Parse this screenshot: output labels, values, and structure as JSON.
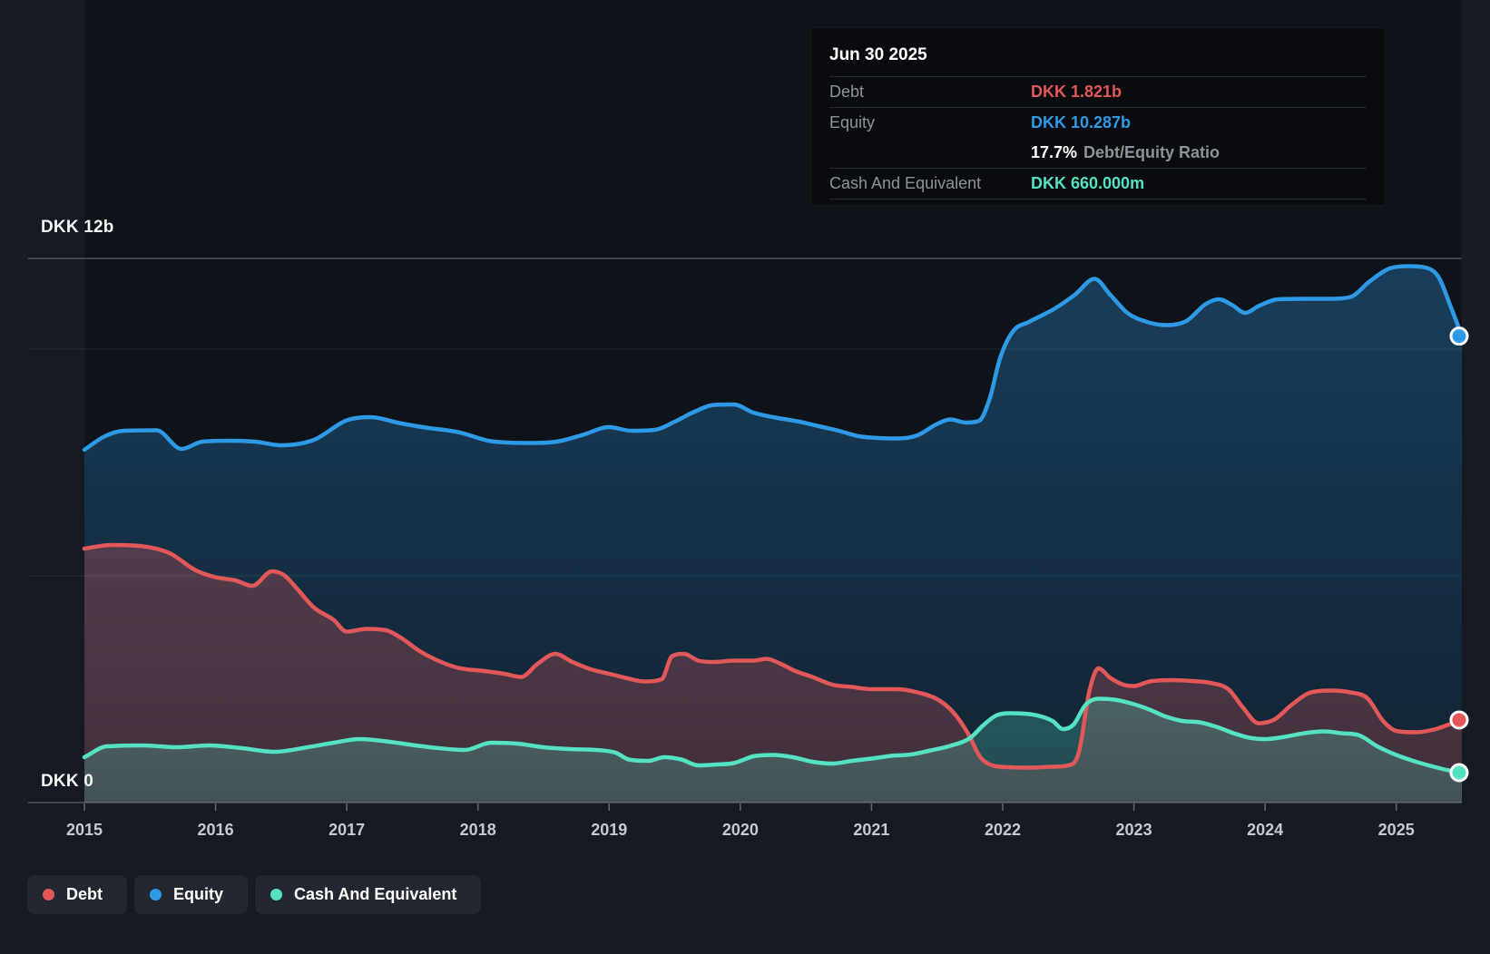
{
  "y_axis": {
    "top_label": "DKK 12b",
    "zero_label": "DKK 0"
  },
  "x_axis": {
    "years": [
      "2015",
      "2016",
      "2017",
      "2018",
      "2019",
      "2020",
      "2021",
      "2022",
      "2023",
      "2024",
      "2025"
    ]
  },
  "tooltip": {
    "date": "Jun 30 2025",
    "rows": [
      {
        "label": "Debt",
        "value": "DKK 1.821b"
      },
      {
        "label": "Equity",
        "value": "DKK 10.287b"
      },
      {
        "label": "",
        "ratio_pct": "17.7%",
        "ratio_text": "Debt/Equity Ratio"
      },
      {
        "label": "Cash And Equivalent",
        "value": "DKK 660.000m"
      }
    ]
  },
  "legend": {
    "items": [
      {
        "id": "debt",
        "label": "Debt"
      },
      {
        "id": "equity",
        "label": "Equity"
      },
      {
        "id": "cash",
        "label": "Cash And Equivalent"
      }
    ]
  },
  "colors": {
    "page_bg": "#161a22",
    "plot_bg": "#0e1219",
    "tooltip_bg": "#0a0b0e",
    "debt": "#e25858",
    "equity": "#2e9ae6",
    "cash": "#55e2c2",
    "label": "#c6cacf",
    "bright_label": "#f2f4f6",
    "muted": "#8d939a"
  },
  "chart_data": {
    "type": "area",
    "title": "Debt to Equity History",
    "unit": "DKK billions",
    "x_range": [
      2015.0,
      2025.5
    ],
    "y_range": [
      0,
      12
    ],
    "gridline_values": [
      12,
      10,
      5,
      0
    ],
    "grid": true,
    "legend_position": "bottom-left",
    "series": [
      {
        "name": "Equity",
        "color_key": "equity",
        "end_label": "DKK 10.287b",
        "points": [
          [
            2015.0,
            7.78
          ],
          [
            2015.15,
            8.07
          ],
          [
            2015.3,
            8.2
          ],
          [
            2015.55,
            8.21
          ],
          [
            2015.74,
            7.8
          ],
          [
            2015.9,
            7.96
          ],
          [
            2016.1,
            7.98
          ],
          [
            2016.3,
            7.96
          ],
          [
            2016.5,
            7.88
          ],
          [
            2016.75,
            8.0
          ],
          [
            2017.0,
            8.43
          ],
          [
            2017.18,
            8.5
          ],
          [
            2017.4,
            8.37
          ],
          [
            2017.6,
            8.27
          ],
          [
            2017.85,
            8.17
          ],
          [
            2018.1,
            7.97
          ],
          [
            2018.4,
            7.93
          ],
          [
            2018.6,
            7.96
          ],
          [
            2018.8,
            8.11
          ],
          [
            2019.0,
            8.28
          ],
          [
            2019.17,
            8.2
          ],
          [
            2019.35,
            8.22
          ],
          [
            2019.5,
            8.4
          ],
          [
            2019.65,
            8.62
          ],
          [
            2019.8,
            8.77
          ],
          [
            2019.95,
            8.78
          ],
          [
            2020.1,
            8.6
          ],
          [
            2020.25,
            8.5
          ],
          [
            2020.45,
            8.4
          ],
          [
            2020.6,
            8.3
          ],
          [
            2020.75,
            8.2
          ],
          [
            2020.9,
            8.08
          ],
          [
            2021.05,
            8.04
          ],
          [
            2021.2,
            8.03
          ],
          [
            2021.35,
            8.1
          ],
          [
            2021.5,
            8.35
          ],
          [
            2021.6,
            8.45
          ],
          [
            2021.72,
            8.38
          ],
          [
            2021.82,
            8.42
          ],
          [
            2021.9,
            8.9
          ],
          [
            2021.98,
            9.8
          ],
          [
            2022.08,
            10.4
          ],
          [
            2022.2,
            10.6
          ],
          [
            2022.4,
            10.9
          ],
          [
            2022.55,
            11.2
          ],
          [
            2022.7,
            11.55
          ],
          [
            2022.82,
            11.2
          ],
          [
            2022.95,
            10.8
          ],
          [
            2023.1,
            10.6
          ],
          [
            2023.25,
            10.53
          ],
          [
            2023.4,
            10.62
          ],
          [
            2023.55,
            11.0
          ],
          [
            2023.65,
            11.1
          ],
          [
            2023.75,
            10.97
          ],
          [
            2023.85,
            10.8
          ],
          [
            2023.95,
            10.95
          ],
          [
            2024.1,
            11.1
          ],
          [
            2024.3,
            11.11
          ],
          [
            2024.5,
            11.11
          ],
          [
            2024.65,
            11.15
          ],
          [
            2024.8,
            11.5
          ],
          [
            2024.95,
            11.78
          ],
          [
            2025.1,
            11.83
          ],
          [
            2025.22,
            11.8
          ],
          [
            2025.32,
            11.6
          ],
          [
            2025.42,
            10.9
          ],
          [
            2025.5,
            10.287
          ]
        ]
      },
      {
        "name": "Debt",
        "color_key": "debt",
        "end_label": "DKK 1.821b",
        "points": [
          [
            2015.0,
            5.6
          ],
          [
            2015.2,
            5.68
          ],
          [
            2015.45,
            5.65
          ],
          [
            2015.65,
            5.5
          ],
          [
            2015.85,
            5.12
          ],
          [
            2016.0,
            4.97
          ],
          [
            2016.15,
            4.9
          ],
          [
            2016.28,
            4.78
          ],
          [
            2016.43,
            5.1
          ],
          [
            2016.52,
            5.02
          ],
          [
            2016.62,
            4.72
          ],
          [
            2016.75,
            4.3
          ],
          [
            2016.9,
            4.03
          ],
          [
            2017.0,
            3.77
          ],
          [
            2017.15,
            3.83
          ],
          [
            2017.3,
            3.8
          ],
          [
            2017.42,
            3.62
          ],
          [
            2017.55,
            3.35
          ],
          [
            2017.68,
            3.15
          ],
          [
            2017.85,
            2.97
          ],
          [
            2018.05,
            2.9
          ],
          [
            2018.2,
            2.84
          ],
          [
            2018.33,
            2.77
          ],
          [
            2018.45,
            3.05
          ],
          [
            2018.59,
            3.28
          ],
          [
            2018.72,
            3.1
          ],
          [
            2018.86,
            2.94
          ],
          [
            2019.0,
            2.84
          ],
          [
            2019.14,
            2.74
          ],
          [
            2019.27,
            2.67
          ],
          [
            2019.4,
            2.72
          ],
          [
            2019.48,
            3.23
          ],
          [
            2019.57,
            3.28
          ],
          [
            2019.68,
            3.13
          ],
          [
            2019.8,
            3.1
          ],
          [
            2019.95,
            3.13
          ],
          [
            2020.1,
            3.13
          ],
          [
            2020.2,
            3.17
          ],
          [
            2020.3,
            3.07
          ],
          [
            2020.42,
            2.9
          ],
          [
            2020.55,
            2.77
          ],
          [
            2020.7,
            2.6
          ],
          [
            2020.85,
            2.55
          ],
          [
            2021.0,
            2.5
          ],
          [
            2021.2,
            2.5
          ],
          [
            2021.35,
            2.43
          ],
          [
            2021.5,
            2.28
          ],
          [
            2021.62,
            2.0
          ],
          [
            2021.73,
            1.55
          ],
          [
            2021.83,
            1.0
          ],
          [
            2021.92,
            0.82
          ],
          [
            2022.05,
            0.78
          ],
          [
            2022.2,
            0.77
          ],
          [
            2022.38,
            0.79
          ],
          [
            2022.5,
            0.82
          ],
          [
            2022.58,
            1.1
          ],
          [
            2022.66,
            2.45
          ],
          [
            2022.73,
            2.96
          ],
          [
            2022.82,
            2.75
          ],
          [
            2022.92,
            2.6
          ],
          [
            2023.0,
            2.57
          ],
          [
            2023.12,
            2.67
          ],
          [
            2023.28,
            2.7
          ],
          [
            2023.45,
            2.68
          ],
          [
            2023.6,
            2.63
          ],
          [
            2023.72,
            2.5
          ],
          [
            2023.83,
            2.1
          ],
          [
            2023.95,
            1.75
          ],
          [
            2024.07,
            1.83
          ],
          [
            2024.2,
            2.15
          ],
          [
            2024.35,
            2.43
          ],
          [
            2024.5,
            2.47
          ],
          [
            2024.65,
            2.43
          ],
          [
            2024.78,
            2.3
          ],
          [
            2024.9,
            1.8
          ],
          [
            2025.0,
            1.58
          ],
          [
            2025.15,
            1.55
          ],
          [
            2025.3,
            1.62
          ],
          [
            2025.4,
            1.72
          ],
          [
            2025.5,
            1.821
          ]
        ]
      },
      {
        "name": "Cash And Equivalent",
        "color_key": "cash",
        "end_label": "DKK 660.000m",
        "points": [
          [
            2015.0,
            1.0
          ],
          [
            2015.17,
            1.24
          ],
          [
            2015.45,
            1.26
          ],
          [
            2015.7,
            1.22
          ],
          [
            2015.95,
            1.26
          ],
          [
            2016.2,
            1.2
          ],
          [
            2016.45,
            1.12
          ],
          [
            2016.7,
            1.22
          ],
          [
            2016.9,
            1.32
          ],
          [
            2017.1,
            1.4
          ],
          [
            2017.3,
            1.35
          ],
          [
            2017.5,
            1.27
          ],
          [
            2017.7,
            1.2
          ],
          [
            2017.9,
            1.16
          ],
          [
            2018.1,
            1.32
          ],
          [
            2018.3,
            1.3
          ],
          [
            2018.5,
            1.22
          ],
          [
            2018.7,
            1.18
          ],
          [
            2018.9,
            1.16
          ],
          [
            2019.05,
            1.1
          ],
          [
            2019.15,
            0.95
          ],
          [
            2019.3,
            0.92
          ],
          [
            2019.42,
            1.0
          ],
          [
            2019.55,
            0.95
          ],
          [
            2019.68,
            0.82
          ],
          [
            2019.82,
            0.84
          ],
          [
            2019.95,
            0.87
          ],
          [
            2020.1,
            1.02
          ],
          [
            2020.25,
            1.05
          ],
          [
            2020.4,
            1.0
          ],
          [
            2020.55,
            0.9
          ],
          [
            2020.7,
            0.86
          ],
          [
            2020.85,
            0.92
          ],
          [
            2021.0,
            0.97
          ],
          [
            2021.15,
            1.03
          ],
          [
            2021.3,
            1.06
          ],
          [
            2021.45,
            1.15
          ],
          [
            2021.6,
            1.25
          ],
          [
            2021.75,
            1.42
          ],
          [
            2021.85,
            1.7
          ],
          [
            2021.95,
            1.92
          ],
          [
            2022.05,
            1.97
          ],
          [
            2022.25,
            1.93
          ],
          [
            2022.38,
            1.8
          ],
          [
            2022.46,
            1.62
          ],
          [
            2022.54,
            1.72
          ],
          [
            2022.63,
            2.15
          ],
          [
            2022.73,
            2.29
          ],
          [
            2022.85,
            2.27
          ],
          [
            2023.0,
            2.17
          ],
          [
            2023.12,
            2.05
          ],
          [
            2023.24,
            1.9
          ],
          [
            2023.37,
            1.8
          ],
          [
            2023.5,
            1.77
          ],
          [
            2023.63,
            1.67
          ],
          [
            2023.76,
            1.53
          ],
          [
            2023.88,
            1.43
          ],
          [
            2024.0,
            1.4
          ],
          [
            2024.15,
            1.45
          ],
          [
            2024.3,
            1.53
          ],
          [
            2024.45,
            1.57
          ],
          [
            2024.58,
            1.53
          ],
          [
            2024.72,
            1.48
          ],
          [
            2024.85,
            1.25
          ],
          [
            2025.0,
            1.05
          ],
          [
            2025.15,
            0.9
          ],
          [
            2025.3,
            0.78
          ],
          [
            2025.4,
            0.71
          ],
          [
            2025.5,
            0.66
          ]
        ]
      }
    ]
  }
}
